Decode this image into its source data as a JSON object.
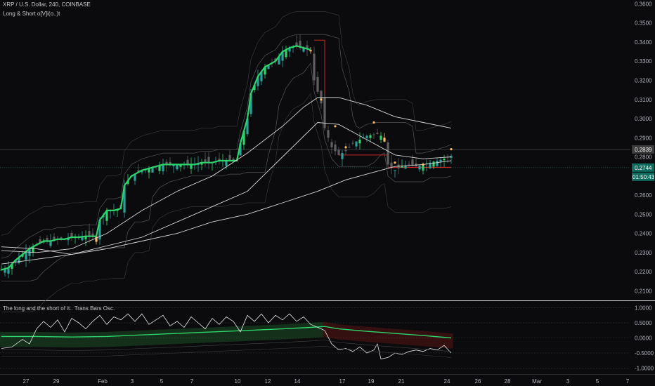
{
  "legend": {
    "symbol": "XRP / U.S. Dollar, 240, COINBASE",
    "indicator": "Long & Short o[V]i(o..)t",
    "oscillator": "The long and the short of it.. Trans Bars Osc."
  },
  "tags": {
    "upper_price": "0.2839",
    "last_price": "0.2744",
    "countdown": "01:50:43"
  },
  "colors": {
    "background": "#0b0b0d",
    "bull": "#2fd36b",
    "bear_body": "#5f5f5f",
    "highlight": "#ffbb66",
    "ma": "#d6d6d6",
    "channel": "#555555",
    "red_line": "#c62828",
    "upper_tag": "#3b3b3b",
    "last_tag": "#0e6b5e"
  },
  "chart_data": [
    {
      "type": "candlestick",
      "title": "XRP / U.S. Dollar, 240, COINBASE",
      "ylim": [
        0.205,
        0.362
      ],
      "y_ticks": [
        "0.3600",
        "0.3500",
        "0.3400",
        "0.3300",
        "0.3200",
        "0.3100",
        "0.3000",
        "0.2900",
        "0.2800",
        "0.2700",
        "0.2600",
        "0.2500",
        "0.2400",
        "0.2300",
        "0.2200",
        "0.2100"
      ],
      "x_ticks": [
        "27",
        "29",
        "Feb",
        "3",
        "5",
        "7",
        "10",
        "12",
        "14",
        "17",
        "19",
        "21",
        "24",
        "26",
        "28",
        "Mar",
        "3",
        "5",
        "7"
      ],
      "close_path": [
        [
          0,
          0.221
        ],
        [
          2,
          0.222
        ],
        [
          4,
          0.226
        ],
        [
          6,
          0.229
        ],
        [
          8,
          0.232
        ],
        [
          10,
          0.234
        ],
        [
          12,
          0.236
        ],
        [
          14,
          0.236
        ],
        [
          16,
          0.237
        ],
        [
          18,
          0.237
        ],
        [
          20,
          0.238
        ],
        [
          22,
          0.238
        ],
        [
          24,
          0.2385
        ],
        [
          27,
          0.2385
        ],
        [
          28,
          0.247
        ],
        [
          30,
          0.252
        ],
        [
          32,
          0.252
        ],
        [
          34,
          0.253
        ],
        [
          35,
          0.265
        ],
        [
          37,
          0.27
        ],
        [
          40,
          0.273
        ],
        [
          42,
          0.274
        ],
        [
          44,
          0.275
        ],
        [
          46,
          0.276
        ],
        [
          48,
          0.276
        ],
        [
          55,
          0.276
        ],
        [
          57,
          0.277
        ],
        [
          60,
          0.277
        ],
        [
          62,
          0.278
        ],
        [
          65,
          0.278
        ],
        [
          67,
          0.278
        ],
        [
          68,
          0.287
        ],
        [
          70,
          0.3
        ],
        [
          71,
          0.313
        ],
        [
          73,
          0.322
        ],
        [
          75,
          0.327
        ],
        [
          78,
          0.33
        ],
        [
          80,
          0.335
        ],
        [
          82,
          0.337
        ],
        [
          84,
          0.338
        ],
        [
          86,
          0.337
        ],
        [
          88,
          0.336
        ],
        [
          89,
          0.32
        ],
        [
          91,
          0.308
        ],
        [
          92,
          0.295
        ],
        [
          94,
          0.285
        ],
        [
          96,
          0.281
        ],
        [
          98,
          0.283
        ],
        [
          100,
          0.287
        ],
        [
          102,
          0.289
        ],
        [
          104,
          0.291
        ],
        [
          107,
          0.292
        ],
        [
          109,
          0.29
        ],
        [
          110,
          0.276
        ],
        [
          112,
          0.273
        ],
        [
          114,
          0.275
        ],
        [
          116,
          0.276
        ],
        [
          118,
          0.275
        ],
        [
          120,
          0.276
        ],
        [
          122,
          0.277
        ],
        [
          124,
          0.278
        ],
        [
          126,
          0.279
        ],
        [
          128,
          0.2805
        ]
      ],
      "ma_fast": [
        [
          0,
          0.231
        ],
        [
          10,
          0.23
        ],
        [
          20,
          0.232
        ],
        [
          30,
          0.24
        ],
        [
          40,
          0.252
        ],
        [
          50,
          0.262
        ],
        [
          60,
          0.27
        ],
        [
          70,
          0.282
        ],
        [
          80,
          0.296
        ],
        [
          86,
          0.306
        ],
        [
          90,
          0.311
        ],
        [
          96,
          0.311
        ],
        [
          104,
          0.307
        ],
        [
          112,
          0.301
        ],
        [
          120,
          0.298
        ],
        [
          128,
          0.295
        ]
      ],
      "ma_slow": [
        [
          0,
          0.224
        ],
        [
          20,
          0.229
        ],
        [
          40,
          0.238
        ],
        [
          60,
          0.254
        ],
        [
          70,
          0.262
        ],
        [
          80,
          0.28
        ],
        [
          90,
          0.298
        ],
        [
          96,
          0.297
        ],
        [
          104,
          0.289
        ],
        [
          112,
          0.281
        ],
        [
          120,
          0.279
        ],
        [
          128,
          0.28
        ]
      ],
      "ma_long": [
        [
          0,
          0.233
        ],
        [
          10,
          0.232
        ],
        [
          20,
          0.229
        ],
        [
          30,
          0.232
        ],
        [
          40,
          0.236
        ],
        [
          50,
          0.24
        ],
        [
          60,
          0.246
        ],
        [
          70,
          0.25
        ],
        [
          80,
          0.256
        ],
        [
          90,
          0.262
        ],
        [
          98,
          0.268
        ],
        [
          104,
          0.271
        ],
        [
          112,
          0.275
        ],
        [
          120,
          0.276
        ],
        [
          128,
          0.278
        ]
      ],
      "last_price": 0.2744,
      "upper_price": 0.2839
    },
    {
      "type": "line",
      "title": "The long and the short of it.. Trans Bars Osc.",
      "ylim": [
        -1.2,
        1.2
      ],
      "y_ticks": [
        "1.0000",
        "0.5000",
        "0.0000",
        "-0.5000",
        "-1.0000"
      ],
      "series": [
        {
          "points": [
            [
              0,
              -0.35
            ],
            [
              3,
              -0.3
            ],
            [
              6,
              -0.05
            ],
            [
              8,
              -0.2
            ],
            [
              10,
              0.3
            ],
            [
              12,
              0.55
            ],
            [
              14,
              0.35
            ],
            [
              16,
              0.6
            ],
            [
              18,
              0.2
            ],
            [
              20,
              0.65
            ],
            [
              22,
              0.5
            ],
            [
              24,
              0.3
            ],
            [
              26,
              0.55
            ],
            [
              28,
              0.75
            ],
            [
              30,
              0.45
            ],
            [
              32,
              0.7
            ],
            [
              34,
              0.6
            ],
            [
              36,
              0.8
            ],
            [
              38,
              0.55
            ],
            [
              40,
              0.8
            ],
            [
              42,
              0.45
            ],
            [
              44,
              0.6
            ],
            [
              46,
              0.75
            ],
            [
              48,
              0.4
            ],
            [
              50,
              0.55
            ],
            [
              52,
              0.35
            ],
            [
              54,
              0.7
            ],
            [
              56,
              0.5
            ],
            [
              58,
              0.3
            ],
            [
              60,
              0.65
            ],
            [
              62,
              0.45
            ],
            [
              64,
              0.7
            ],
            [
              66,
              0.55
            ],
            [
              68,
              0.2
            ],
            [
              70,
              0.75
            ],
            [
              72,
              0.55
            ],
            [
              74,
              0.8
            ],
            [
              76,
              0.5
            ],
            [
              78,
              0.75
            ],
            [
              80,
              0.6
            ],
            [
              82,
              0.8
            ],
            [
              84,
              0.55
            ],
            [
              86,
              0.7
            ],
            [
              88,
              0.45
            ],
            [
              90,
              0.35
            ],
            [
              92,
              0.25
            ],
            [
              94,
              -0.2
            ],
            [
              96,
              -0.4
            ],
            [
              98,
              -0.35
            ],
            [
              100,
              -0.45
            ],
            [
              102,
              -0.3
            ],
            [
              104,
              -0.5
            ],
            [
              106,
              -0.4
            ],
            [
              107,
              -0.2
            ],
            [
              108,
              -0.7
            ],
            [
              110,
              -0.65
            ],
            [
              112,
              -0.5
            ],
            [
              114,
              -0.55
            ],
            [
              116,
              -0.45
            ],
            [
              118,
              -0.4
            ],
            [
              120,
              -0.45
            ],
            [
              122,
              -0.35
            ],
            [
              124,
              -0.4
            ],
            [
              126,
              -0.25
            ],
            [
              128,
              -0.5
            ]
          ]
        },
        {
          "points": [
            [
              0,
              0.05
            ],
            [
              10,
              0.05
            ],
            [
              20,
              0.03
            ],
            [
              30,
              0.05
            ],
            [
              40,
              0.1
            ],
            [
              50,
              0.15
            ],
            [
              60,
              0.2
            ],
            [
              70,
              0.25
            ],
            [
              80,
              0.3
            ],
            [
              88,
              0.35
            ],
            [
              92,
              0.38
            ],
            [
              96,
              0.3
            ],
            [
              104,
              0.22
            ],
            [
              112,
              0.15
            ],
            [
              120,
              0.08
            ],
            [
              128,
              0.0
            ]
          ]
        }
      ]
    }
  ]
}
